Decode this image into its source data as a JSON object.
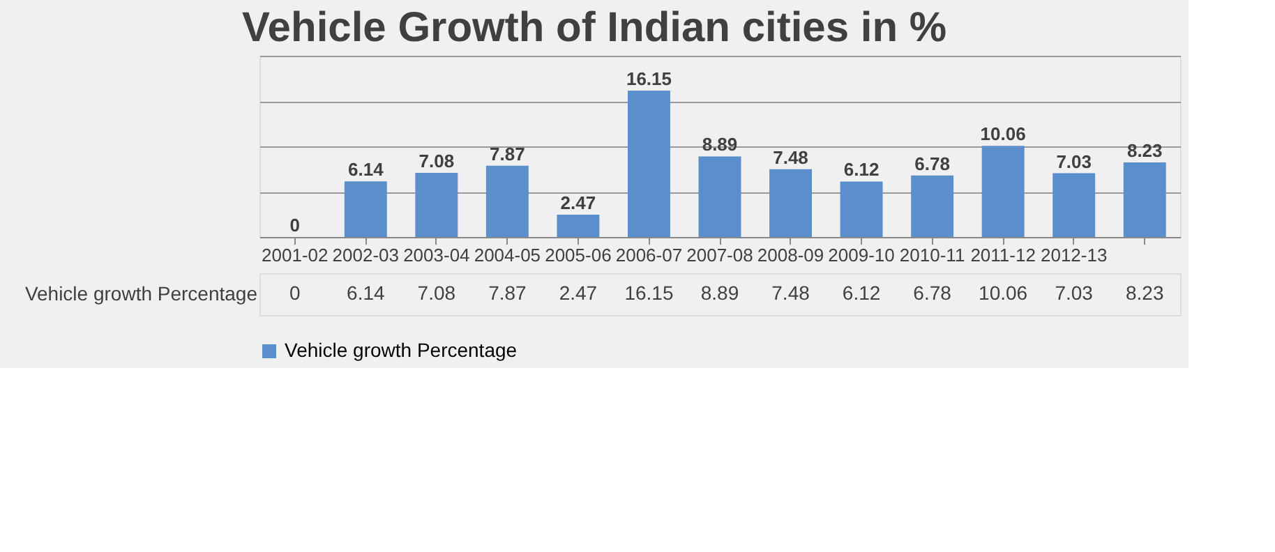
{
  "chart_data": {
    "type": "bar",
    "title": "Vehicle Growth of Indian cities in %",
    "categories": [
      "2001-02",
      "2002-03",
      "2003-04",
      "2004-05",
      "2005-06",
      "2006-07",
      "2007-08",
      "2008-09",
      "2009-10",
      "2010-11",
      "2011-12",
      "2012-13",
      null
    ],
    "series": [
      {
        "name": "Vehicle growth Percentage",
        "color": "#5b8fcb",
        "values": [
          0,
          6.14,
          7.08,
          7.87,
          2.47,
          16.15,
          8.89,
          7.48,
          6.12,
          6.78,
          10.06,
          7.03,
          8.23
        ],
        "value_labels": [
          "0",
          "6.14",
          "7.08",
          "7.87",
          "2.47",
          "16.15",
          "8.89",
          "7.48",
          "6.12",
          "6.78",
          "10.06",
          "7.03",
          "8.23"
        ]
      }
    ],
    "ylim": [
      0,
      20
    ],
    "annotations": [
      "0",
      "6.14",
      "7.08",
      "7.87",
      "2.47",
      "16.15",
      "8.89",
      "7.48",
      "6.12",
      "6.78",
      "10.06",
      "7.03",
      "8.23"
    ],
    "grid": "y",
    "legend": "bottom"
  }
}
